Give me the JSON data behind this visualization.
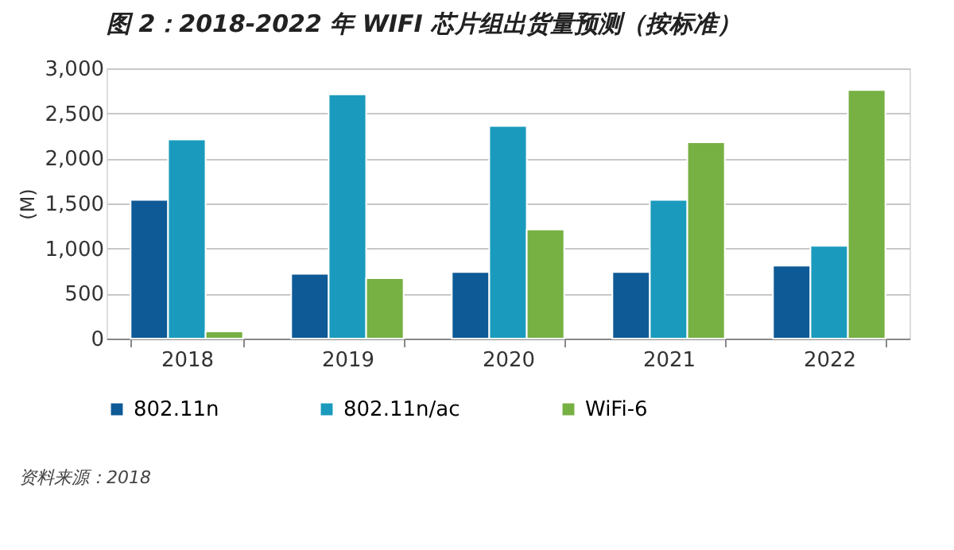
{
  "chart_data": {
    "type": "bar",
    "title": "图 2：2018-2022 年 WIFI 芯片组出货量预测（按标准）",
    "ylabel": "(M)",
    "categories": [
      "2018",
      "2019",
      "2020",
      "2021",
      "2022"
    ],
    "series": [
      {
        "name": "802.11n",
        "color": "#0e5a96",
        "values": [
          1540,
          720,
          740,
          740,
          810
        ]
      },
      {
        "name": "802.11n/ac",
        "color": "#1a9bbd",
        "values": [
          2210,
          2710,
          2360,
          1540,
          1030
        ]
      },
      {
        "name": "WiFi-6",
        "color": "#77b043",
        "values": [
          80,
          670,
          1210,
          2180,
          2760
        ]
      }
    ],
    "ylim": [
      0,
      3000
    ],
    "yticks": [
      0,
      500,
      {
        "value": 1000,
        "label": "1,000"
      },
      {
        "value": 1500,
        "label": "1,500"
      },
      {
        "value": 2000,
        "label": "2,000"
      },
      {
        "value": 2500,
        "label": "2,500"
      },
      {
        "value": 3000,
        "label": "3,000"
      }
    ],
    "grid": "y",
    "legend": "bottom",
    "annotations": [
      "资料来源：2018"
    ]
  }
}
